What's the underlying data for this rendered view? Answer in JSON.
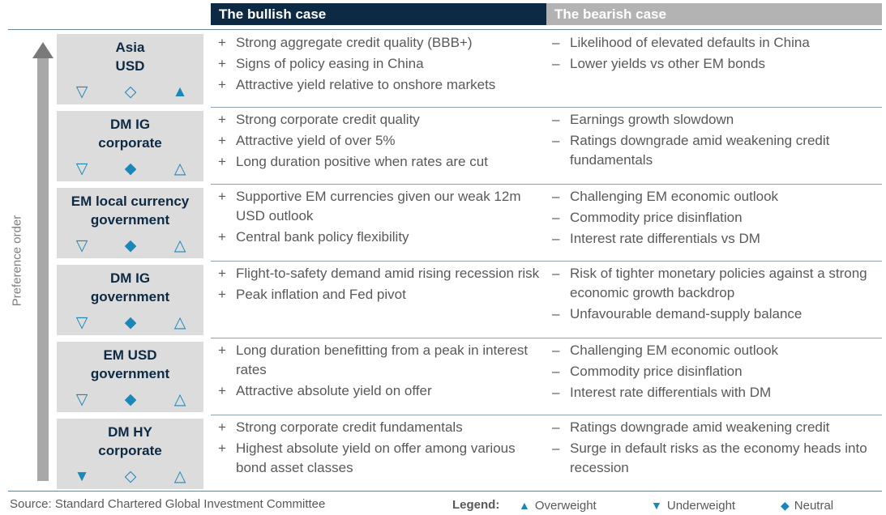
{
  "header": {
    "bullish": "The bullish case",
    "bearish": "The bearish case"
  },
  "axis_label": "Preference order",
  "source": "Source: Standard Chartered Global Investment Committee",
  "legend": {
    "title": "Legend:",
    "overweight": "Overweight",
    "underweight": "Underweight",
    "neutral": "Neutral",
    "overweight_symbol": "▲",
    "underweight_symbol": "▼",
    "neutral_symbol": "◆"
  },
  "colors": {
    "navy": "#0d2a45",
    "accent": "#1b87b8",
    "grey": "#b3b3b3"
  },
  "rows": [
    {
      "name": "Asia\nUSD",
      "symbols": [
        "▽",
        "◇",
        "▲"
      ],
      "bull": [
        "Strong aggregate credit quality (BBB+)",
        "Signs of policy easing in China",
        "Attractive yield relative to onshore markets"
      ],
      "bear": [
        "Likelihood of elevated defaults in China",
        "Lower yields vs other EM bonds"
      ]
    },
    {
      "name": "DM IG\ncorporate",
      "symbols": [
        "▽",
        "◆",
        "△"
      ],
      "bull": [
        "Strong corporate credit quality",
        "Attractive yield of over 5%",
        "Long duration positive when rates are cut"
      ],
      "bear": [
        "Earnings growth slowdown",
        "Ratings downgrade amid weakening credit fundamentals"
      ]
    },
    {
      "name": "EM local currency\ngovernment",
      "symbols": [
        "▽",
        "◆",
        "△"
      ],
      "bull": [
        "Supportive EM currencies given our weak 12m USD outlook",
        "Central bank policy flexibility"
      ],
      "bear": [
        "Challenging EM economic outlook",
        "Commodity price disinflation",
        "Interest rate differentials vs DM"
      ]
    },
    {
      "name": "DM IG\ngovernment",
      "symbols": [
        "▽",
        "◆",
        "△"
      ],
      "bull": [
        "Flight-to-safety demand amid rising recession risk",
        "Peak inflation and Fed pivot"
      ],
      "bear": [
        "Risk of tighter monetary policies against a strong economic growth backdrop",
        "Unfavourable demand-supply balance"
      ]
    },
    {
      "name": "EM USD\ngovernment",
      "symbols": [
        "▽",
        "◆",
        "△"
      ],
      "bull": [
        "Long duration benefitting from a peak in interest rates",
        "Attractive absolute yield on offer"
      ],
      "bear": [
        "Challenging EM economic outlook",
        "Commodity price disinflation",
        "Interest rate differentials with DM"
      ]
    },
    {
      "name": "DM HY\ncorporate",
      "symbols": [
        "▼",
        "◇",
        "△"
      ],
      "bull": [
        "Strong corporate credit fundamentals",
        "Highest absolute yield on offer among various bond asset classes"
      ],
      "bear": [
        "Ratings downgrade amid weakening credit",
        "Surge in default risks as the economy heads into recession"
      ]
    }
  ]
}
